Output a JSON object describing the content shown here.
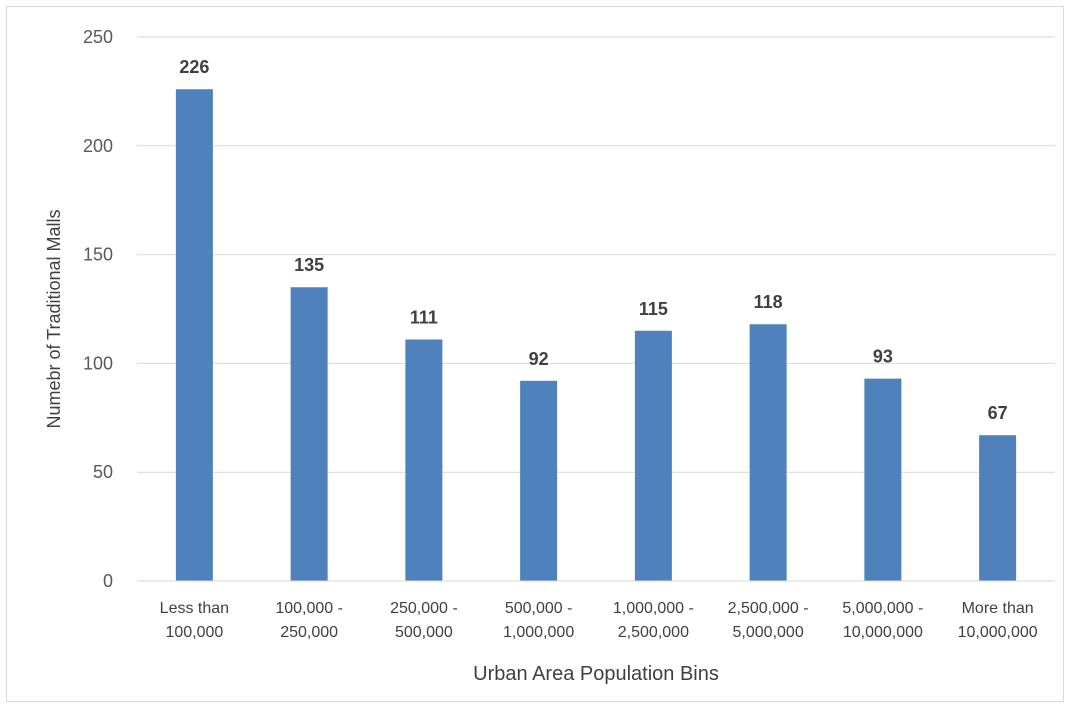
{
  "chart_data": {
    "type": "bar",
    "title": "",
    "xlabel": "Urban Area Population Bins",
    "ylabel": "Numebr of Traditional Malls",
    "ylim": [
      0,
      250
    ],
    "yticks": [
      0,
      50,
      100,
      150,
      200,
      250
    ],
    "grid": true,
    "legend": "none",
    "bar_color": "#4f81bd",
    "categories": [
      [
        "Less than",
        "100,000"
      ],
      [
        "100,000 -",
        "250,000"
      ],
      [
        "250,000 -",
        "500,000"
      ],
      [
        "500,000 -",
        "1,000,000"
      ],
      [
        "1,000,000 -",
        "2,500,000"
      ],
      [
        "2,500,000 -",
        "5,000,000"
      ],
      [
        "5,000,000 -",
        "10,000,000"
      ],
      [
        "More than",
        "10,000,000"
      ]
    ],
    "values": [
      226,
      135,
      111,
      92,
      115,
      118,
      93,
      67
    ]
  }
}
